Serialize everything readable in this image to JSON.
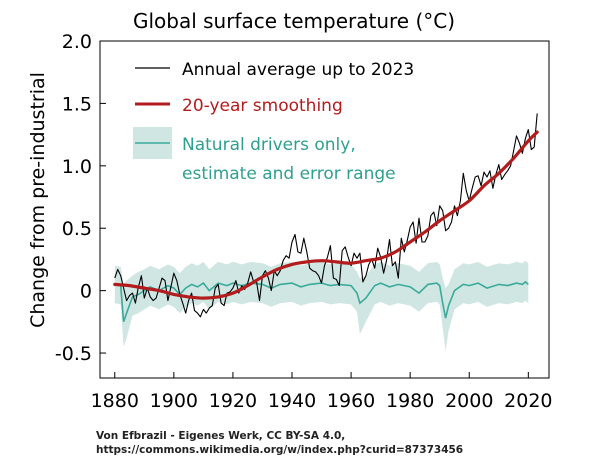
{
  "chart_data": {
    "type": "line",
    "title": "Global surface temperature (°C)",
    "ylabel": "Change from pre-industrial",
    "xlabel": "",
    "xlim": [
      1875,
      2027
    ],
    "ylim": [
      -0.7,
      2.0
    ],
    "x_ticks": [
      1880,
      1900,
      1920,
      1940,
      1960,
      1980,
      2000,
      2020
    ],
    "y_ticks": [
      {
        "value": 2.0,
        "label": "2.0"
      },
      {
        "value": 1.5,
        "label": "1.5"
      },
      {
        "value": 1.0,
        "label": "1.0"
      },
      {
        "value": 0.5,
        "label": "0.5"
      },
      {
        "value": 0,
        "label": "0"
      },
      {
        "value": -0.5,
        "label": "-0.5"
      }
    ],
    "grid": false,
    "legend_position": "top-left",
    "legend": [
      {
        "label": "Annual average up to 2023"
      },
      {
        "label": "20-year smoothing"
      },
      {
        "label_line1": "Natural drivers only,",
        "label_line2": "estimate and error range"
      }
    ],
    "series": [
      {
        "key": "annual",
        "color": "#000000",
        "x": [
          1880,
          1881,
          1882,
          1883,
          1884,
          1885,
          1886,
          1887,
          1888,
          1889,
          1890,
          1891,
          1892,
          1893,
          1894,
          1895,
          1896,
          1897,
          1898,
          1899,
          1900,
          1901,
          1902,
          1903,
          1904,
          1905,
          1906,
          1907,
          1908,
          1909,
          1910,
          1911,
          1912,
          1913,
          1914,
          1915,
          1916,
          1917,
          1918,
          1919,
          1920,
          1921,
          1922,
          1923,
          1924,
          1925,
          1926,
          1927,
          1928,
          1929,
          1930,
          1931,
          1932,
          1933,
          1934,
          1935,
          1936,
          1937,
          1938,
          1939,
          1940,
          1941,
          1942,
          1943,
          1944,
          1945,
          1946,
          1947,
          1948,
          1949,
          1950,
          1951,
          1952,
          1953,
          1954,
          1955,
          1956,
          1957,
          1958,
          1959,
          1960,
          1961,
          1962,
          1963,
          1964,
          1965,
          1966,
          1967,
          1968,
          1969,
          1970,
          1971,
          1972,
          1973,
          1974,
          1975,
          1976,
          1977,
          1978,
          1979,
          1980,
          1981,
          1982,
          1983,
          1984,
          1985,
          1986,
          1987,
          1988,
          1989,
          1990,
          1991,
          1992,
          1993,
          1994,
          1995,
          1996,
          1997,
          1998,
          1999,
          2000,
          2001,
          2002,
          2003,
          2004,
          2005,
          2006,
          2007,
          2008,
          2009,
          2010,
          2011,
          2012,
          2013,
          2014,
          2015,
          2016,
          2017,
          2018,
          2019,
          2020,
          2021,
          2022,
          2023
        ],
        "y": [
          0.1,
          0.17,
          0.12,
          0.02,
          -0.08,
          -0.04,
          -0.02,
          -0.1,
          0.03,
          0.12,
          -0.06,
          0.02,
          -0.05,
          -0.08,
          -0.06,
          0.02,
          0.1,
          0.08,
          -0.08,
          0.03,
          0.14,
          0.08,
          -0.03,
          -0.1,
          -0.18,
          -0.08,
          -0.02,
          -0.16,
          -0.18,
          -0.21,
          -0.15,
          -0.18,
          -0.14,
          -0.12,
          0.02,
          0.05,
          -0.1,
          -0.12,
          -0.02,
          -0.01,
          0.02,
          0.08,
          -0.02,
          0.04,
          0.01,
          0.06,
          0.15,
          0.07,
          0.07,
          -0.08,
          0.12,
          0.16,
          0.1,
          0.0,
          0.16,
          0.12,
          0.16,
          0.24,
          0.28,
          0.26,
          0.39,
          0.45,
          0.31,
          0.3,
          0.42,
          0.31,
          0.18,
          0.16,
          0.15,
          0.12,
          0.06,
          0.2,
          0.27,
          0.36,
          0.1,
          0.09,
          0.04,
          0.32,
          0.35,
          0.27,
          0.2,
          0.3,
          0.26,
          0.3,
          0.07,
          0.12,
          0.21,
          0.25,
          0.18,
          0.34,
          0.27,
          0.14,
          0.24,
          0.41,
          0.2,
          0.23,
          0.1,
          0.42,
          0.31,
          0.4,
          0.51,
          0.55,
          0.38,
          0.58,
          0.39,
          0.39,
          0.44,
          0.6,
          0.63,
          0.52,
          0.68,
          0.64,
          0.48,
          0.5,
          0.55,
          0.68,
          0.6,
          0.72,
          0.94,
          0.8,
          0.72,
          0.82,
          0.91,
          0.92,
          0.84,
          0.95,
          0.91,
          0.96,
          0.82,
          0.93,
          1.01,
          0.89,
          0.93,
          0.96,
          1.0,
          1.12,
          1.24,
          1.18,
          1.1,
          1.22,
          1.29,
          1.13,
          1.15,
          1.42
        ]
      },
      {
        "key": "smoothed",
        "color": "#b21c1c",
        "x": [
          1880,
          1885,
          1890,
          1895,
          1900,
          1905,
          1910,
          1915,
          1920,
          1925,
          1930,
          1935,
          1940,
          1945,
          1950,
          1955,
          1960,
          1965,
          1970,
          1975,
          1980,
          1985,
          1990,
          1995,
          2000,
          2005,
          2010,
          2015,
          2020,
          2023
        ],
        "y": [
          0.05,
          0.04,
          0.02,
          0.0,
          -0.03,
          -0.05,
          -0.06,
          -0.05,
          -0.02,
          0.04,
          0.11,
          0.17,
          0.21,
          0.23,
          0.24,
          0.23,
          0.22,
          0.24,
          0.26,
          0.31,
          0.39,
          0.47,
          0.56,
          0.64,
          0.72,
          0.84,
          0.94,
          1.06,
          1.2,
          1.27
        ]
      },
      {
        "key": "natural",
        "color": "#3aaa9a",
        "band_color": "#cfe6e3",
        "x": [
          1880,
          1882,
          1883,
          1884,
          1886,
          1888,
          1890,
          1892,
          1895,
          1898,
          1900,
          1902,
          1904,
          1906,
          1908,
          1910,
          1912,
          1915,
          1918,
          1920,
          1923,
          1926,
          1930,
          1933,
          1936,
          1940,
          1943,
          1946,
          1950,
          1953,
          1956,
          1960,
          1962,
          1963,
          1965,
          1968,
          1970,
          1973,
          1976,
          1980,
          1983,
          1986,
          1989,
          1990,
          1991,
          1992,
          1993,
          1995,
          1998,
          2000,
          2003,
          2006,
          2010,
          2013,
          2016,
          2018,
          2019,
          2020
        ],
        "y": [
          0.05,
          0.04,
          -0.25,
          -0.18,
          -0.05,
          -0.03,
          0.0,
          0.03,
          0.0,
          0.04,
          0.02,
          -0.03,
          0.02,
          0.05,
          0.03,
          0.06,
          0.0,
          0.06,
          0.04,
          0.06,
          0.04,
          0.06,
          0.05,
          0.02,
          0.05,
          0.06,
          0.03,
          0.05,
          0.06,
          0.04,
          0.05,
          0.04,
          -0.02,
          -0.1,
          -0.06,
          0.04,
          0.06,
          0.03,
          0.05,
          0.03,
          -0.02,
          0.05,
          0.06,
          0.04,
          -0.1,
          -0.22,
          -0.12,
          0.0,
          0.05,
          0.04,
          0.06,
          0.02,
          0.05,
          0.04,
          0.06,
          0.05,
          0.07,
          0.05
        ],
        "lower": [
          -0.1,
          -0.11,
          -0.45,
          -0.38,
          -0.2,
          -0.18,
          -0.15,
          -0.12,
          -0.15,
          -0.11,
          -0.13,
          -0.18,
          -0.13,
          -0.1,
          -0.12,
          -0.09,
          -0.15,
          -0.09,
          -0.11,
          -0.09,
          -0.11,
          -0.09,
          -0.1,
          -0.13,
          -0.1,
          -0.09,
          -0.12,
          -0.1,
          -0.09,
          -0.11,
          -0.1,
          -0.11,
          -0.17,
          -0.35,
          -0.25,
          -0.11,
          -0.09,
          -0.12,
          -0.1,
          -0.12,
          -0.17,
          -0.1,
          -0.09,
          -0.11,
          -0.3,
          -0.48,
          -0.32,
          -0.15,
          -0.1,
          -0.11,
          -0.09,
          -0.13,
          -0.1,
          -0.11,
          -0.09,
          -0.1,
          -0.08,
          -0.1
        ],
        "upper": [
          0.2,
          0.19,
          0.05,
          0.08,
          0.12,
          0.15,
          0.17,
          0.2,
          0.17,
          0.21,
          0.19,
          0.14,
          0.19,
          0.22,
          0.2,
          0.23,
          0.17,
          0.23,
          0.21,
          0.23,
          0.21,
          0.23,
          0.22,
          0.19,
          0.22,
          0.23,
          0.2,
          0.22,
          0.23,
          0.21,
          0.22,
          0.21,
          0.15,
          0.1,
          0.12,
          0.21,
          0.23,
          0.2,
          0.22,
          0.2,
          0.15,
          0.22,
          0.23,
          0.21,
          0.1,
          0.02,
          0.05,
          0.17,
          0.22,
          0.21,
          0.23,
          0.19,
          0.22,
          0.21,
          0.23,
          0.22,
          0.24,
          0.22
        ]
      }
    ]
  },
  "credit": {
    "line1": "Von Efbrazil - Eigenes Werk, CC BY-SA 4.0,",
    "line2": "https://commons.wikimedia.org/w/index.php?curid=87373456"
  }
}
